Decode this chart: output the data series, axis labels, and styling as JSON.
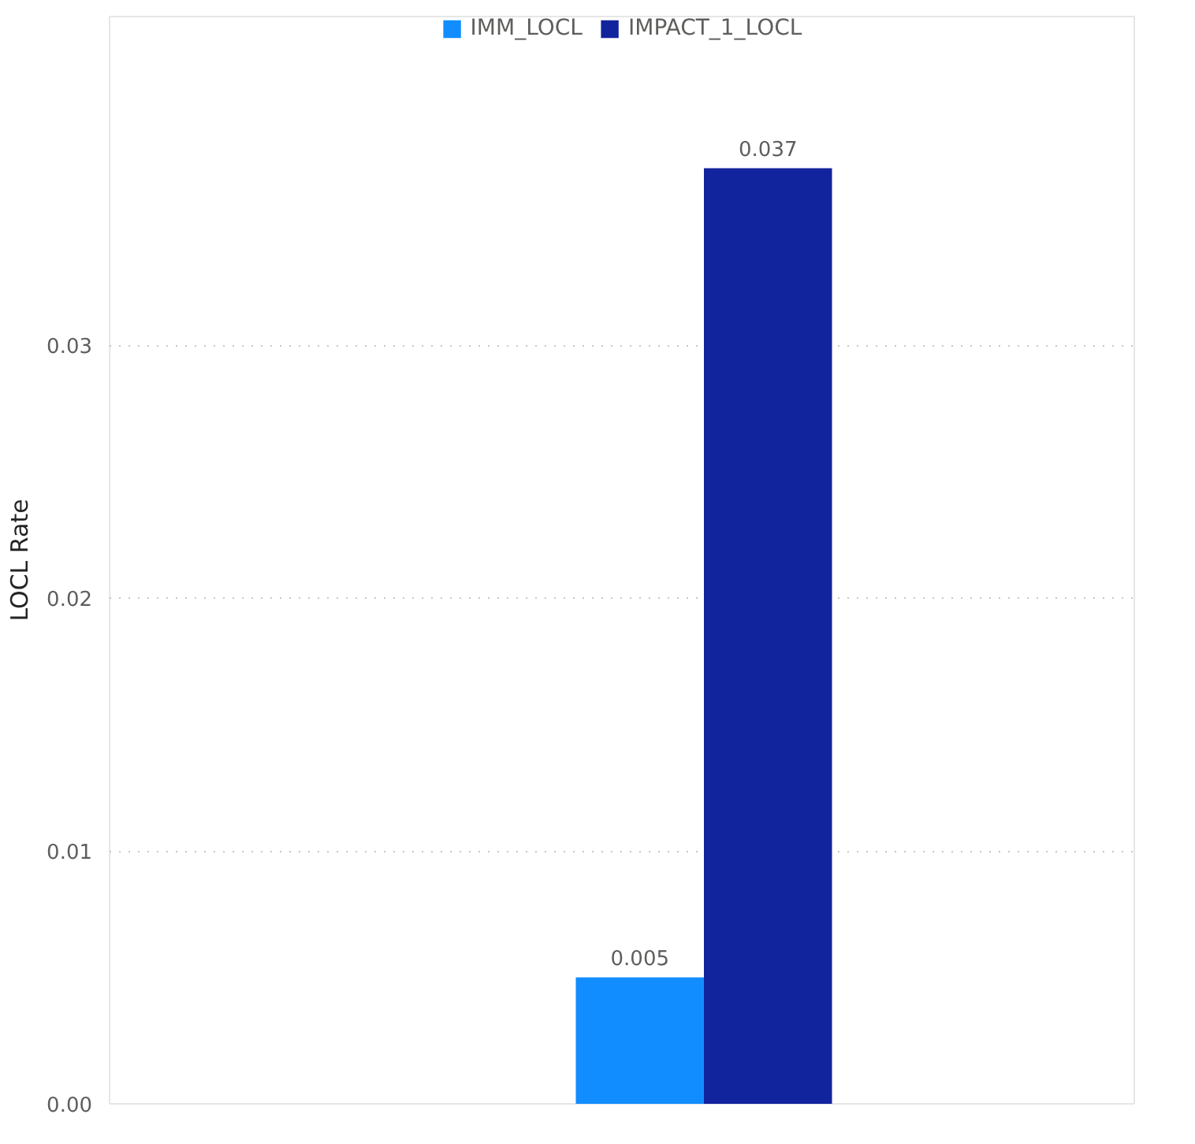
{
  "chart_data": {
    "type": "bar",
    "ylabel": "LOCL Rate",
    "categories": [
      null
    ],
    "series": [
      {
        "name": "IMM_LOCL",
        "color": "#118dff",
        "values": [
          0.005
        ]
      },
      {
        "name": "IMPACT_1_LOCL",
        "color": "#12239e",
        "values": [
          0.037
        ]
      }
    ],
    "ylim": [
      0,
      0.043
    ],
    "yticks": [
      {
        "value": 0,
        "label": "0.00"
      },
      {
        "value": 0.01,
        "label": "0.01"
      },
      {
        "value": 0.02,
        "label": "0.02"
      },
      {
        "value": 0.03,
        "label": "0.03"
      }
    ],
    "grid": "y",
    "legend": "top",
    "data_labels": true
  }
}
